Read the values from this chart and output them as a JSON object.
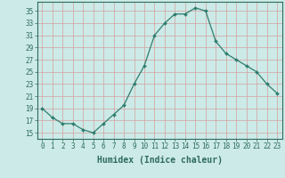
{
  "x": [
    0,
    1,
    2,
    3,
    4,
    5,
    6,
    7,
    8,
    9,
    10,
    11,
    12,
    13,
    14,
    15,
    16,
    17,
    18,
    19,
    20,
    21,
    22,
    23
  ],
  "y": [
    19,
    17.5,
    16.5,
    16.5,
    15.5,
    15,
    16.5,
    18,
    19.5,
    23,
    26,
    31,
    33,
    34.5,
    34.5,
    35.5,
    35,
    30,
    28,
    27,
    26,
    25,
    23,
    21.5
  ],
  "line_color": "#2e7d6e",
  "marker": "D",
  "marker_size": 2,
  "bg_color": "#cceae7",
  "grid_color": "#b0c8c4",
  "xlabel": "Humidex (Indice chaleur)",
  "ylabel_ticks": [
    15,
    17,
    19,
    21,
    23,
    25,
    27,
    29,
    31,
    33,
    35
  ],
  "ylim": [
    14.0,
    36.5
  ],
  "xlim": [
    -0.5,
    23.5
  ],
  "xticks": [
    0,
    1,
    2,
    3,
    4,
    5,
    6,
    7,
    8,
    9,
    10,
    11,
    12,
    13,
    14,
    15,
    16,
    17,
    18,
    19,
    20,
    21,
    22,
    23
  ],
  "tick_fontsize": 5.5,
  "xlabel_fontsize": 7,
  "axis_color": "#2e6b5e"
}
